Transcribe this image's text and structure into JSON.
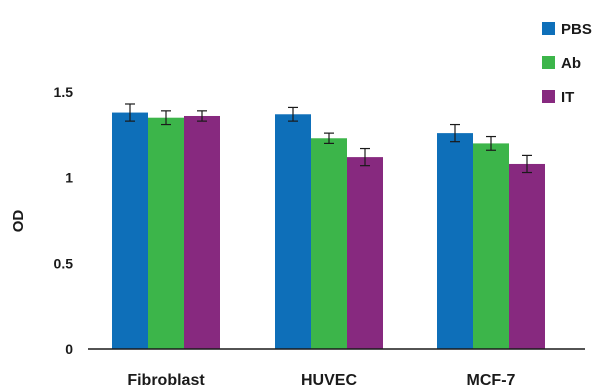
{
  "chart_data": {
    "type": "bar",
    "categories": [
      "Fibroblast",
      "HUVEC",
      "MCF-7"
    ],
    "series": [
      {
        "name": "PBS",
        "color": "#0E6FB9",
        "values": [
          1.38,
          1.37,
          1.26
        ],
        "errors": [
          0.05,
          0.04,
          0.05
        ]
      },
      {
        "name": "Ab",
        "color": "#3CB54A",
        "values": [
          1.35,
          1.23,
          1.2
        ],
        "errors": [
          0.04,
          0.03,
          0.04
        ]
      },
      {
        "name": "IT",
        "color": "#87297F",
        "values": [
          1.36,
          1.12,
          1.08
        ],
        "errors": [
          0.03,
          0.05,
          0.05
        ]
      }
    ],
    "ylabel": "OD",
    "xlabel": "",
    "ylim": [
      0,
      1.5
    ],
    "yticks": [
      0,
      0.5,
      1,
      1.5
    ],
    "ytick_labels": [
      "0",
      "0.5",
      "1",
      "1.5"
    ],
    "legend_position": "top-right",
    "grid": false
  }
}
